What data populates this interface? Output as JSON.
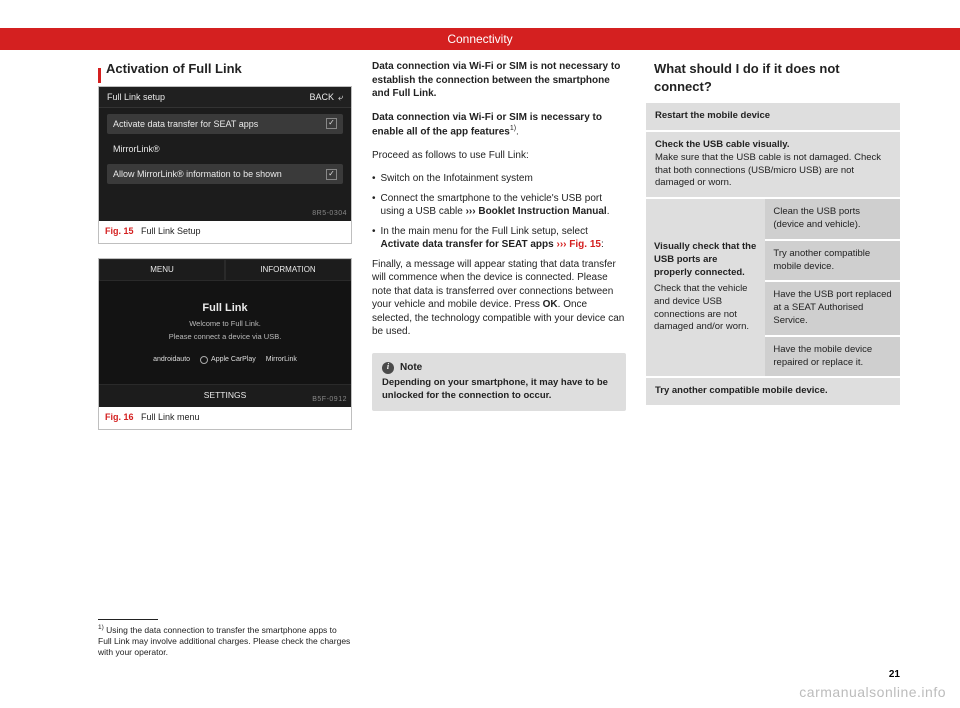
{
  "header": {
    "title": "Connectivity"
  },
  "col1": {
    "heading": "Activation of Full Link",
    "fig15": {
      "title": "Full Link setup",
      "back": "BACK",
      "rows": [
        {
          "label": "Activate data transfer for SEAT apps",
          "checked": true,
          "hl": true
        },
        {
          "label": "MirrorLink®",
          "checked": false,
          "hl": false
        },
        {
          "label": "Allow MirrorLink® information to be shown",
          "checked": true,
          "hl": true
        }
      ],
      "code": "8R5-0304",
      "caption_num": "Fig. 15",
      "caption_text": "Full Link Setup"
    },
    "fig16": {
      "tab_left": "MENU",
      "tab_right": "INFORMATION",
      "title": "Full Link",
      "sub1": "Welcome to Full Link.",
      "sub2": "Please connect a device via USB.",
      "logo1": "androidauto",
      "logo2": "Apple CarPlay",
      "logo3": "MirrorLink",
      "bottom": "SETTINGS",
      "code": "B5F-0912",
      "caption_num": "Fig. 16",
      "caption_text": "Full Link menu"
    },
    "footnote_num": "1)",
    "footnote": "Using the data connection to transfer the smartphone apps to Full Link may involve additional charges. Please check the charges with your operator."
  },
  "col2": {
    "p1": "Data connection via Wi-Fi or SIM is not necessary to establish the connection between the smartphone and Full Link.",
    "p2a": "Data connection via Wi-Fi or SIM is necessary to enable all of the app features",
    "p2sup": "1)",
    "p3": "Proceed as follows to use Full Link:",
    "b1": "Switch on the Infotainment system",
    "b2a": "Connect the smartphone to the vehicle's USB port using a USB cable ",
    "b2b": "››› Booklet Instruction Manual",
    "b2c": ".",
    "b3a": "In the main menu for the Full Link setup, select ",
    "b3b": "Activate data transfer for SEAT apps",
    "b3c": " ",
    "b3d": "››› Fig. 15",
    "b3e": ":",
    "p4a": "Finally, a message will appear stating that data transfer will commence when the device is connected. Please note that data is transferred over connections between your vehicle and mobile device. Press ",
    "p4b": "OK",
    "p4c": ". Once selected, the technology compatible with your device can be used.",
    "note_label": "Note",
    "note_body": "Depending on your smartphone, it may have to be unlocked for the connection to occur."
  },
  "col3": {
    "heading": "What should I do if it does not connect?",
    "r1_hd": "Restart the mobile device",
    "r2_hd": "Check the USB cable visually.",
    "r2_bd": "Make sure that the USB cable is not damaged. Check that both connections (USB/micro USB) are not damaged or worn.",
    "r3_left_hd": "Visually check that the USB ports are properly connected.",
    "r3_left_bd": "Check that the vehicle and device USB connections are not damaged and/or worn.",
    "r3_c1": "Clean the USB ports (device and vehicle).",
    "r3_c2": "Try another compatible mobile device.",
    "r3_c3": "Have the USB port replaced at a SEAT Authorised Service.",
    "r3_c4": "Have the mobile device repaired or replace it.",
    "r4_hd": "Try another compatible mobile device."
  },
  "pagenum": "21",
  "watermark": "carmanualsonline.info"
}
